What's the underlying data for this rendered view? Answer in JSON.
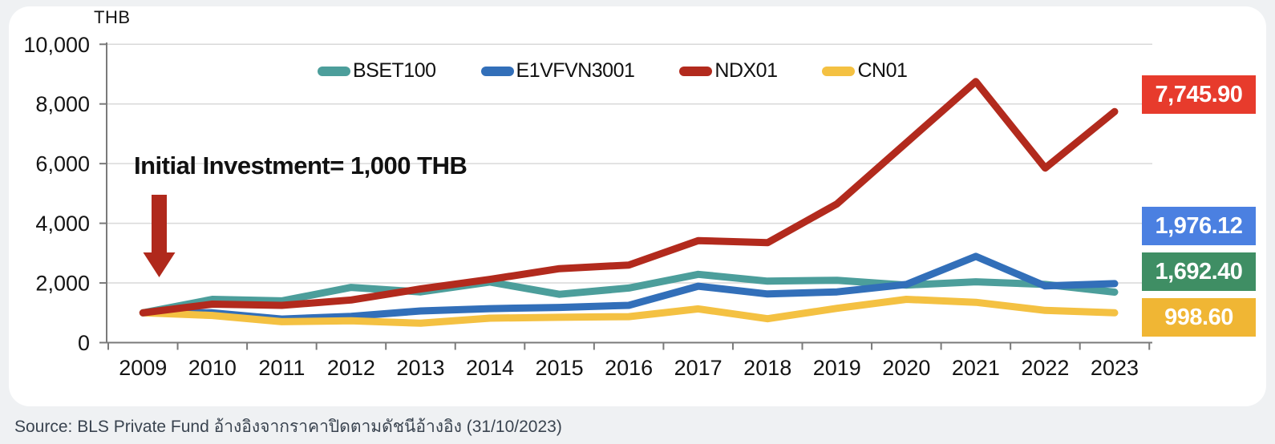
{
  "page": {
    "background": "#eff1f3",
    "panel_background": "#ffffff"
  },
  "chart_data": {
    "type": "line",
    "unit_label": "THB",
    "annotation": "Initial Investment= 1,000 THB",
    "arrow_color": "#b0291c",
    "x": [
      "2009",
      "2010",
      "2011",
      "2012",
      "2013",
      "2014",
      "2015",
      "2016",
      "2017",
      "2018",
      "2019",
      "2020",
      "2021",
      "2022",
      "2023"
    ],
    "series": [
      {
        "name": "BSET100",
        "color": "#4c9e9b",
        "values": [
          1000,
          1450,
          1400,
          1850,
          1700,
          2030,
          1620,
          1830,
          2290,
          2060,
          2090,
          1930,
          2040,
          1950,
          1692.4
        ],
        "final_label": "1,692.40",
        "final_label_bg": "#3f8e64"
      },
      {
        "name": "E1VFVN3001",
        "color": "#326fb9",
        "values": [
          1000,
          1000,
          790,
          880,
          1060,
          1140,
          1180,
          1250,
          1890,
          1630,
          1700,
          1950,
          2890,
          1900,
          1976.12
        ],
        "final_label": "1,976.12",
        "final_label_bg": "#4b80e1"
      },
      {
        "name": "NDX01",
        "color": "#b22a1d",
        "values": [
          1000,
          1290,
          1250,
          1430,
          1800,
          2120,
          2480,
          2600,
          3420,
          3350,
          4650,
          6700,
          8750,
          5850,
          7745.9
        ],
        "final_label": "7,745.90",
        "final_label_bg": "#e73b2c"
      },
      {
        "name": "CN01",
        "color": "#f4c142",
        "values": [
          1000,
          910,
          700,
          730,
          650,
          820,
          850,
          870,
          1130,
          800,
          1150,
          1450,
          1350,
          1080,
          998.6
        ],
        "final_label": "998.60",
        "final_label_bg": "#f0b634"
      }
    ],
    "ylim": [
      0,
      10000
    ],
    "ytick_step": 2000,
    "ytick_labels": [
      "0",
      "2,000",
      "4,000",
      "6,000",
      "8,000",
      "10,000"
    ],
    "grid": "horizontal",
    "legend_position": "top-center",
    "axis_color": "#7a7a7a",
    "grid_color": "#d9d9d9",
    "tick_label_color": "#141414"
  },
  "source": {
    "text": "Source: BLS Private Fund อ้างอิงจากราคาปิดตามดัชนีอ้างอิง (31/10/2023)"
  }
}
